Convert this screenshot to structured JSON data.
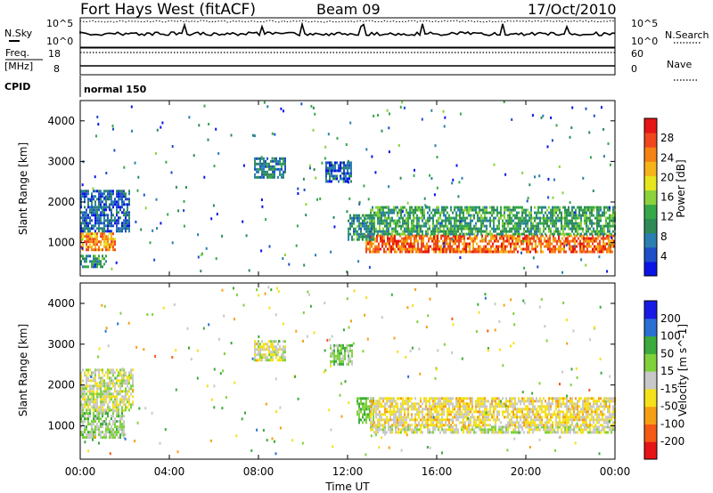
{
  "header": {
    "station": "Fort Hays West (fitACF)",
    "beam": "Beam 09",
    "date": "17/Oct/2010"
  },
  "sky_panel": {
    "left_label": "N.Sky",
    "right_label": "N.Search",
    "ticks_left": [
      "10^5",
      "10^0"
    ],
    "ticks_right": [
      "10^5",
      "10^0"
    ]
  },
  "freq_panel": {
    "left_label": "Freq.",
    "left_unit": "[MHz]",
    "right_label": "Nave",
    "ticks_left": [
      "18",
      "8"
    ],
    "ticks_right": [
      "60",
      "0"
    ]
  },
  "cpid": {
    "label": "CPID",
    "mode": "normal 150"
  },
  "x_axis": {
    "label": "Time UT",
    "ticks": [
      "00:00",
      "04:00",
      "08:00",
      "12:00",
      "16:00",
      "20:00",
      "00:00"
    ],
    "range_hours": [
      0,
      24
    ]
  },
  "chart_data": [
    {
      "type": "heatmap",
      "title": "Power",
      "ylabel": "Slant Range [km]",
      "yticks": [
        "1000",
        "2000",
        "3000",
        "4000"
      ],
      "ylim": [
        180,
        4500
      ],
      "colorbar": {
        "label": "Power [dB]",
        "ticks": [
          "4",
          "8",
          "12",
          "16",
          "20",
          "24",
          "28"
        ],
        "range": [
          0,
          32
        ],
        "colors": [
          "#0a14e6",
          "#1e4fc8",
          "#2a7fb0",
          "#2e8b57",
          "#37a84a",
          "#8cd23c",
          "#e6e61e",
          "#f5b419",
          "#f58214",
          "#f0461e",
          "#e61414"
        ]
      },
      "bands": [
        {
          "t_start": 0.0,
          "t_end": 1.6,
          "range_low": 850,
          "range_high": 1250,
          "power_db": 24
        },
        {
          "t_start": 0.0,
          "t_end": 2.2,
          "range_low": 1250,
          "range_high": 2300,
          "power_db": 6
        },
        {
          "t_start": 0.0,
          "t_end": 1.2,
          "range_low": 400,
          "range_high": 700,
          "power_db": 10
        },
        {
          "t_start": 7.8,
          "t_end": 9.2,
          "range_low": 2600,
          "range_high": 3100,
          "power_db": 8
        },
        {
          "t_start": 11.0,
          "t_end": 12.2,
          "range_low": 2500,
          "range_high": 3000,
          "power_db": 6
        },
        {
          "t_start": 12.8,
          "t_end": 24.0,
          "range_low": 780,
          "range_high": 1200,
          "power_db": 26
        },
        {
          "t_start": 13.0,
          "t_end": 24.0,
          "range_low": 1200,
          "range_high": 1900,
          "power_db": 12
        },
        {
          "t_start": 12.0,
          "t_end": 13.2,
          "range_low": 1100,
          "range_high": 1700,
          "power_db": 10
        }
      ]
    },
    {
      "type": "heatmap",
      "title": "Velocity",
      "ylabel": "Slant Range [km]",
      "yticks": [
        "1000",
        "2000",
        "3000",
        "4000"
      ],
      "ylim": [
        180,
        4500
      ],
      "colorbar": {
        "label": "Velocity [m s^-1]",
        "ticks": [
          "200",
          "100",
          "50",
          "15",
          "-15",
          "-50",
          "-100",
          "-200"
        ],
        "range": [
          -250,
          250
        ],
        "colors": [
          "#1a1ae6",
          "#2a6fd2",
          "#3caa3c",
          "#7fd23c",
          "#c8c8c8",
          "#f5e119",
          "#f5a014",
          "#f55a14",
          "#e61414"
        ]
      },
      "bands": [
        {
          "t_start": 0.0,
          "t_end": 2.0,
          "range_low": 700,
          "range_high": 1400,
          "velocity": 40
        },
        {
          "t_start": 0.0,
          "t_end": 2.4,
          "range_low": 1400,
          "range_high": 2400,
          "velocity": 0
        },
        {
          "t_start": 7.8,
          "t_end": 9.2,
          "range_low": 2600,
          "range_high": 3100,
          "velocity": -10
        },
        {
          "t_start": 11.2,
          "t_end": 12.2,
          "range_low": 2500,
          "range_high": 3000,
          "velocity": 60
        },
        {
          "t_start": 12.4,
          "t_end": 13.2,
          "range_low": 1100,
          "range_high": 1700,
          "velocity": 80
        },
        {
          "t_start": 13.0,
          "t_end": 24.0,
          "range_low": 850,
          "range_high": 1000,
          "velocity": 0
        },
        {
          "t_start": 13.0,
          "t_end": 24.0,
          "range_low": 1000,
          "range_high": 1700,
          "velocity": -40
        }
      ]
    }
  ]
}
